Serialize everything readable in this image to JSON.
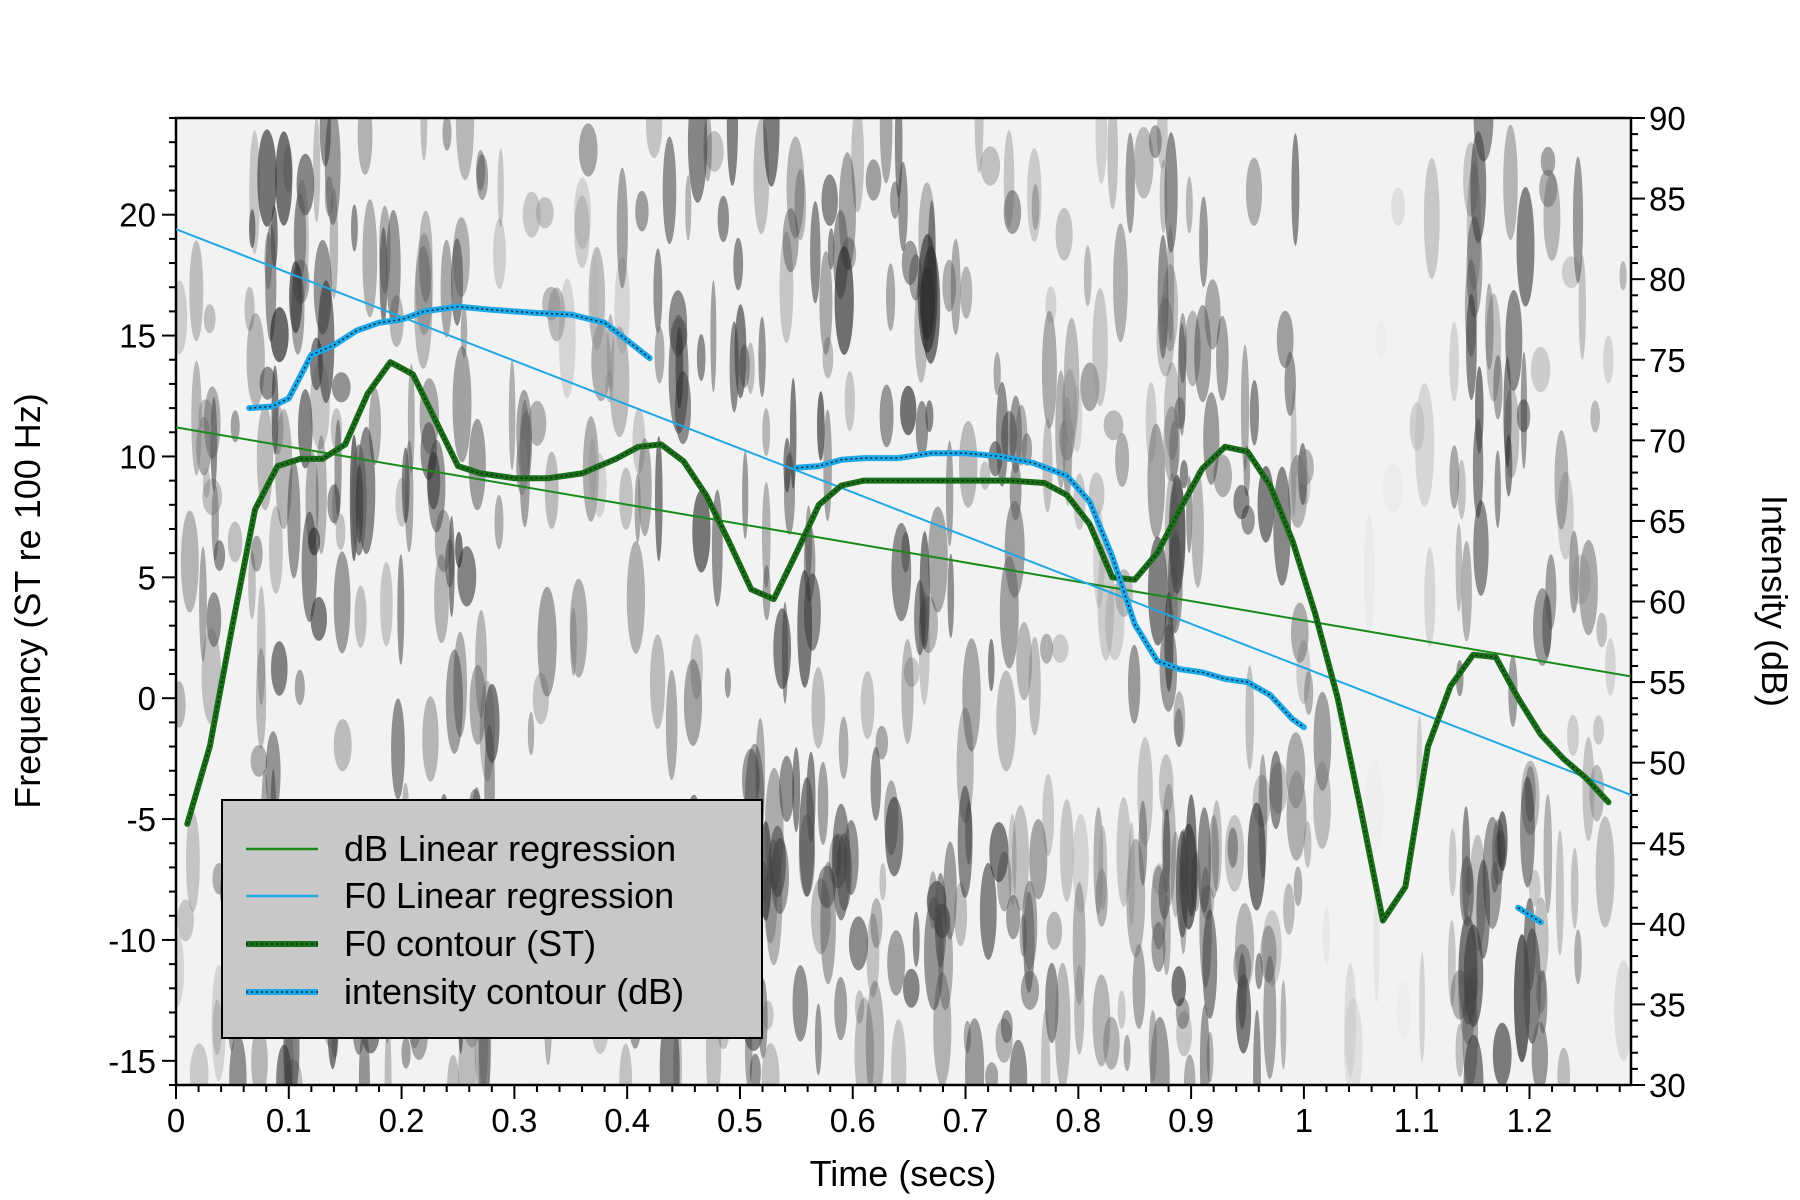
{
  "chart_data": {
    "type": "line",
    "background": "spectrogram",
    "xlabel": "Time (secs)",
    "ylabel": "Frequency (ST re 100 Hz)",
    "y2label": "Intensity (dB)",
    "xlim": [
      0,
      1.29
    ],
    "ylim": [
      -16,
      24
    ],
    "y2lim": [
      30,
      90
    ],
    "x_ticks": [
      "0",
      "0.1",
      "0.2",
      "0.3",
      "0.4",
      "0.5",
      "0.6",
      "0.7",
      "0.8",
      "0.9",
      "1",
      "1.1",
      "1.2"
    ],
    "y_ticks": [
      "-15",
      "-10",
      "-5",
      "0",
      "5",
      "10",
      "15",
      "20"
    ],
    "y2_ticks": [
      "30",
      "35",
      "40",
      "45",
      "50",
      "55",
      "60",
      "65",
      "70",
      "75",
      "80",
      "85",
      "90"
    ],
    "legend_position": "bottom-left",
    "series": [
      {
        "name": "dB Linear regression",
        "axis": "left",
        "color": "#1a8a1a",
        "style": "thin",
        "x": [
          0,
          1.29
        ],
        "y": [
          11.2,
          0.9
        ]
      },
      {
        "name": "F0 Linear regression",
        "axis": "left",
        "color": "#1ea8e6",
        "style": "thin",
        "x": [
          0,
          1.29
        ],
        "y": [
          19.4,
          -4.0
        ]
      },
      {
        "name": "F0 contour (ST)",
        "axis": "left",
        "color": "#1a6e1a",
        "style": "thick",
        "x": [
          0.01,
          0.03,
          0.05,
          0.07,
          0.09,
          0.11,
          0.13,
          0.15,
          0.17,
          0.19,
          0.21,
          0.23,
          0.25,
          0.27,
          0.3,
          0.33,
          0.36,
          0.39,
          0.41,
          0.43,
          0.45,
          0.47,
          0.49,
          0.51,
          0.53,
          0.55,
          0.57,
          0.59,
          0.61,
          0.65,
          0.7,
          0.74,
          0.77,
          0.79,
          0.81,
          0.83,
          0.85,
          0.87,
          0.89,
          0.91,
          0.93,
          0.95,
          0.97,
          0.99,
          1.01,
          1.03,
          1.05,
          1.07,
          1.09,
          1.11,
          1.13,
          1.15,
          1.17,
          1.19,
          1.21,
          1.23,
          1.25,
          1.27
        ],
        "y": [
          -5.2,
          -2.0,
          3.0,
          7.8,
          9.6,
          9.9,
          9.9,
          10.5,
          12.6,
          13.9,
          13.4,
          11.5,
          9.6,
          9.3,
          9.1,
          9.1,
          9.3,
          9.9,
          10.4,
          10.5,
          9.8,
          8.4,
          6.5,
          4.5,
          4.1,
          6.0,
          8.0,
          8.8,
          9.0,
          9.0,
          9.0,
          9.0,
          8.9,
          8.4,
          7.2,
          5.0,
          4.9,
          6.0,
          7.8,
          9.5,
          10.4,
          10.2,
          8.8,
          6.5,
          3.5,
          0.0,
          -4.5,
          -9.2,
          -7.8,
          -2.0,
          0.5,
          1.8,
          1.7,
          0.0,
          -1.5,
          -2.5,
          -3.3,
          -4.3
        ]
      },
      {
        "name": "intensity contour (dB)",
        "axis": "right",
        "color": "#1ea8e6",
        "style": "thick-dotted",
        "segments": [
          {
            "x": [
              0.065,
              0.085,
              0.1,
              0.12,
              0.14,
              0.16,
              0.18,
              0.2,
              0.22,
              0.25,
              0.28,
              0.32,
              0.35,
              0.38,
              0.4,
              0.42
            ],
            "y": [
              72.0,
              72.1,
              72.6,
              75.3,
              75.9,
              76.8,
              77.3,
              77.5,
              78.0,
              78.3,
              78.1,
              77.9,
              77.8,
              77.3,
              76.2,
              75.1
            ]
          },
          {
            "x": [
              0.55,
              0.57,
              0.59,
              0.61,
              0.64,
              0.67,
              0.7,
              0.73,
              0.76,
              0.79,
              0.81,
              0.83,
              0.85,
              0.87,
              0.89,
              0.91,
              0.93,
              0.95,
              0.97,
              0.99,
              1.0
            ],
            "y": [
              68.3,
              68.4,
              68.8,
              68.9,
              68.9,
              69.2,
              69.2,
              69.0,
              68.6,
              67.8,
              66.2,
              62.8,
              58.6,
              56.3,
              55.8,
              55.6,
              55.2,
              55.0,
              54.2,
              52.7,
              52.2
            ]
          },
          {
            "x": [
              1.19,
              1.21
            ],
            "y": [
              41.0,
              40.1
            ]
          }
        ]
      }
    ]
  }
}
